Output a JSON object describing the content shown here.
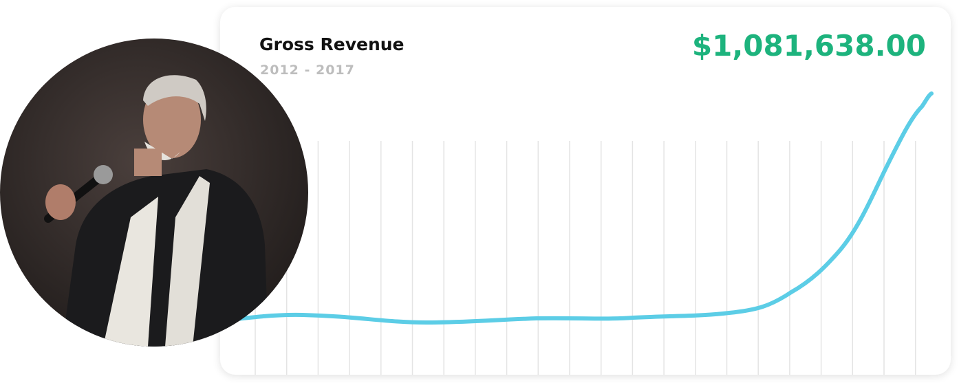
{
  "card": {
    "title": "Gross Revenue",
    "subtitle": "2012 - 2017",
    "amount": "$1,081,638.00"
  }
}
